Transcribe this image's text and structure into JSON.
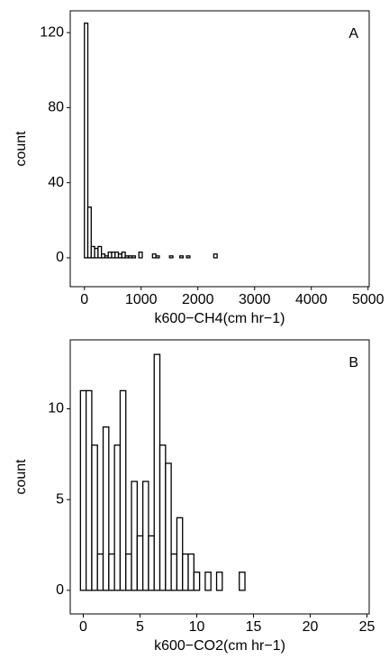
{
  "chart_data": [
    {
      "type": "histogram",
      "panel_label": "A",
      "xlabel": "k600−CH4(cm hr−1)",
      "ylabel": "count",
      "bins": [
        0,
        60,
        120,
        180,
        240,
        300,
        360,
        420,
        480,
        540,
        600,
        660,
        720,
        780,
        840,
        900,
        960,
        1020,
        1080,
        1140,
        1200,
        1260,
        1320,
        1380,
        1440,
        1500,
        1560,
        1620,
        1680,
        1740,
        1800,
        1860,
        1920,
        1980,
        2040,
        2100,
        2160,
        2220,
        2280,
        2340,
        2400,
        2460,
        2520,
        2580,
        2640,
        2700,
        2760,
        2820,
        2880,
        2940,
        3000,
        3060,
        3120,
        3180,
        3240,
        3300,
        3360,
        3420,
        3480,
        3540,
        3600,
        3660,
        3720,
        3780,
        3840,
        3900,
        3960,
        4020,
        4080,
        4140,
        4200,
        4260,
        4320,
        4380,
        4440,
        4500,
        4560,
        4620,
        4680,
        4740,
        4800,
        4860,
        4920,
        4980
      ],
      "counts": [
        125,
        27,
        6,
        5,
        6,
        2,
        1,
        3,
        3,
        3,
        2,
        3,
        1,
        1,
        1,
        0,
        3,
        0,
        0,
        0,
        2,
        1,
        0,
        0,
        0,
        1,
        0,
        0,
        1,
        0,
        1,
        0,
        0,
        0,
        0,
        0,
        0,
        0,
        2,
        0,
        0,
        0,
        0,
        0,
        0,
        0,
        0,
        0,
        0,
        0,
        0,
        0,
        0,
        0,
        0,
        0,
        0,
        0,
        0,
        0,
        0,
        0,
        0,
        0,
        0,
        0,
        0,
        0,
        0,
        0,
        0,
        0,
        0,
        0,
        0,
        0,
        0,
        0,
        0,
        0,
        0,
        0,
        0
      ],
      "color": "#ffffff",
      "edgecolor": "#000000",
      "xlim": [
        -250,
        5020
      ],
      "xticks": [
        0,
        1000,
        2000,
        3000,
        4000,
        5000
      ],
      "ylim": [
        -15.4,
        131.6
      ],
      "yticks": [
        0,
        40,
        80,
        120
      ]
    },
    {
      "type": "histogram",
      "panel_label": "B",
      "xlabel": "k600−CO2(cm hr−1)",
      "ylabel": "count",
      "bins": [
        -0.25,
        0.25,
        0.75,
        1.25,
        1.75,
        2.25,
        2.75,
        3.25,
        3.75,
        4.25,
        4.75,
        5.25,
        5.75,
        6.25,
        6.75,
        7.25,
        7.75,
        8.25,
        8.75,
        9.25,
        9.75,
        10.25,
        10.75,
        11.25,
        11.75,
        12.25,
        12.75,
        13.25,
        13.75,
        14.25,
        14.75,
        15.25,
        15.75,
        16.25,
        16.75,
        17.25,
        17.75,
        18.25,
        18.75,
        19.25,
        19.75,
        20.25,
        20.75,
        21.25,
        21.75,
        22.25,
        22.75,
        23.25,
        23.75,
        24.25,
        24.75
      ],
      "counts": [
        11,
        11,
        8,
        2,
        9,
        2,
        8,
        11,
        2,
        6,
        3,
        6,
        3,
        13,
        8,
        7,
        2,
        4,
        2,
        2,
        1,
        0,
        1,
        0,
        1,
        0,
        0,
        0,
        1,
        0,
        0,
        0,
        0,
        0,
        0,
        0,
        0,
        0,
        0,
        0,
        0,
        0,
        0,
        0,
        0,
        0,
        0,
        0,
        0,
        0
      ],
      "color": "#ffffff",
      "edgecolor": "#000000",
      "xlim": [
        -1.15,
        25.2
      ],
      "xticks": [
        0,
        5,
        10,
        15,
        20,
        25
      ],
      "ylim": [
        -1.3,
        13.8
      ],
      "yticks": [
        0,
        5,
        10
      ]
    }
  ]
}
